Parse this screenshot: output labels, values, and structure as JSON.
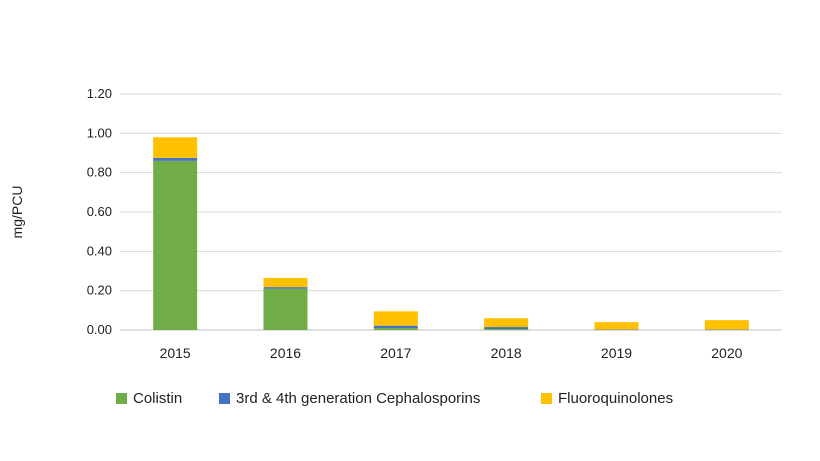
{
  "chart_data": {
    "type": "bar",
    "stacked": true,
    "title": "",
    "xlabel": "",
    "ylabel": "mg/PCU",
    "ylim": [
      0,
      1.2
    ],
    "yticks": [
      "0.00",
      "0.20",
      "0.40",
      "0.60",
      "0.80",
      "1.00",
      "1.20"
    ],
    "grid": true,
    "legend_position": "bottom",
    "categories": [
      "2015",
      "2016",
      "2017",
      "2018",
      "2019",
      "2020"
    ],
    "series": [
      {
        "name": "Colistin",
        "color": "#70AD47",
        "values": [
          0.86,
          0.21,
          0.01,
          0.005,
          0.0,
          0.0
        ]
      },
      {
        "name": "3rd & 4th generation Cephalosporins",
        "color": "#4472C4",
        "values": [
          0.015,
          0.008,
          0.012,
          0.01,
          0.002,
          0.002
        ]
      },
      {
        "name": "Fluoroquinolones",
        "color": "#FFC000",
        "values": [
          0.105,
          0.047,
          0.073,
          0.045,
          0.038,
          0.048
        ]
      }
    ]
  }
}
